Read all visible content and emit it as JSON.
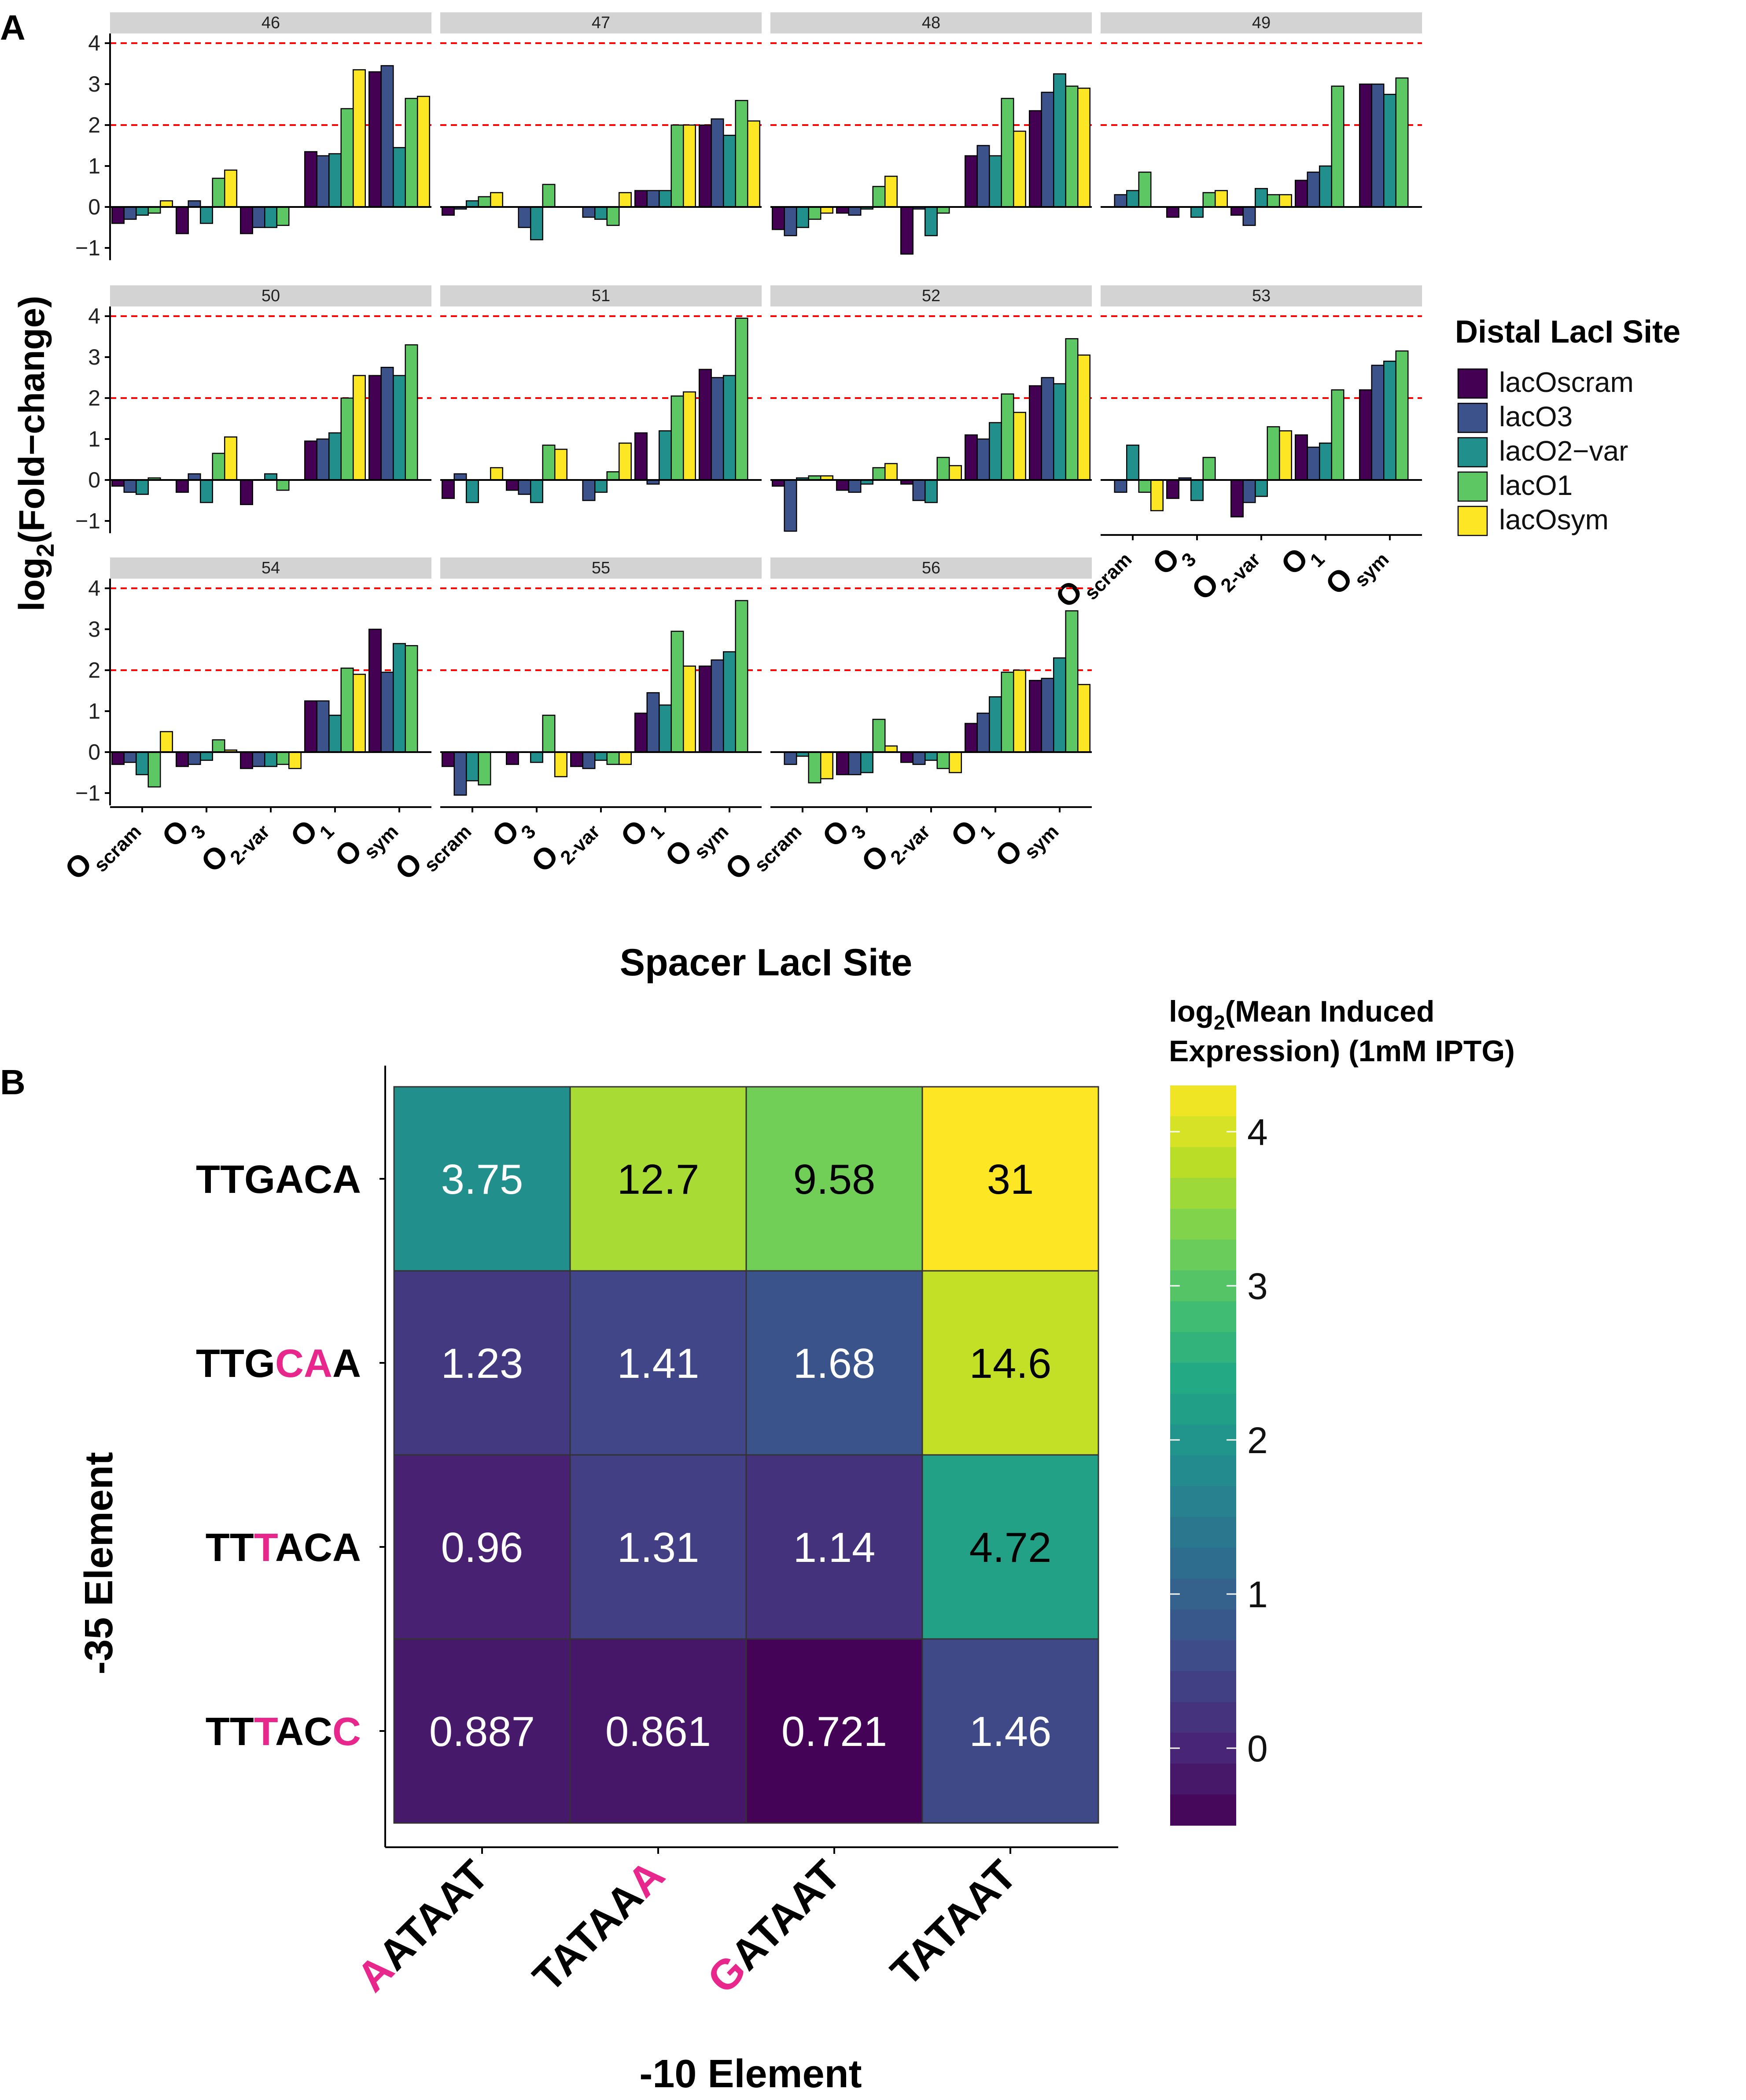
{
  "panel_a": {
    "label": "A",
    "ylabel_main": "log",
    "ylabel_sub": "2",
    "ylabel_rest": "(Fold−change)",
    "xlabel": "Spacer LacI Site",
    "yticks": [
      "−1",
      "0",
      "1",
      "2",
      "3",
      "4"
    ],
    "ref_lines": [
      2,
      4
    ],
    "x_tick_big": "O",
    "x_tick_subs": [
      "scram",
      "3",
      "2-var",
      "1",
      "sym"
    ],
    "legend_title": "Distal LacI Site",
    "legend_items": [
      "lacOscram",
      "lacO3",
      "lacO2−var",
      "lacO1",
      "lacOsym"
    ],
    "colors": [
      "#440154",
      "#3B528B",
      "#21908C",
      "#5DC863",
      "#FDE725"
    ]
  },
  "panel_b": {
    "label": "B",
    "xlabel": "-10 Element",
    "ylabel": "-35 Element",
    "colorbar_title_1a": "log",
    "colorbar_title_1b": "2",
    "colorbar_title_1c": "(Mean Induced",
    "colorbar_title_2": "Expression) (1mM IPTG)",
    "colorbar_ticks": [
      "0",
      "1",
      "2",
      "3",
      "4"
    ],
    "row_labels": [
      [
        {
          "t": "TTGACA",
          "m": false
        }
      ],
      [
        {
          "t": "TTG",
          "m": false
        },
        {
          "t": "CA",
          "m": true
        },
        {
          "t": "A",
          "m": false
        }
      ],
      [
        {
          "t": "TT",
          "m": false
        },
        {
          "t": "T",
          "m": true
        },
        {
          "t": "ACA",
          "m": false
        }
      ],
      [
        {
          "t": "TT",
          "m": false
        },
        {
          "t": "T",
          "m": true
        },
        {
          "t": "AC",
          "m": false
        },
        {
          "t": "C",
          "m": true
        }
      ]
    ],
    "col_labels": [
      [
        {
          "t": "A",
          "m": true
        },
        {
          "t": "ATAAT",
          "m": false
        }
      ],
      [
        {
          "t": "TATAA",
          "m": false
        },
        {
          "t": "A",
          "m": true
        }
      ],
      [
        {
          "t": "G",
          "m": true
        },
        {
          "t": "ATAAT",
          "m": false
        }
      ],
      [
        {
          "t": "TATAAT",
          "m": false
        }
      ]
    ],
    "mutation_color": "#E8278C"
  },
  "chart_data": [
    {
      "type": "bar",
      "facet_variable": "spacer length",
      "x_axis": "Spacer LacI Site",
      "fill": "Distal LacI Site",
      "categories": [
        "Oscram",
        "O3",
        "O2-var",
        "O1",
        "Osym"
      ],
      "series_order": [
        "lacOscram",
        "lacO3",
        "lacO2−var",
        "lacO1",
        "lacOsym"
      ],
      "ylim": [
        -1.3,
        4.1
      ],
      "facets": [
        {
          "label": "46",
          "values": [
            [
              -0.4,
              -0.3,
              -0.2,
              -0.15,
              0.15
            ],
            [
              -0.65,
              0.15,
              -0.4,
              0.7,
              0.9
            ],
            [
              -0.65,
              -0.5,
              -0.5,
              -0.45,
              0
            ],
            [
              1.35,
              1.25,
              1.3,
              2.4,
              3.35
            ],
            [
              3.3,
              3.45,
              1.45,
              2.65,
              2.7
            ]
          ]
        },
        {
          "label": "47",
          "values": [
            [
              -0.2,
              -0.05,
              0.15,
              0.25,
              0.35
            ],
            [
              0,
              -0.5,
              -0.8,
              0.55,
              0
            ],
            [
              0,
              -0.25,
              -0.3,
              -0.45,
              0.35
            ],
            [
              0.4,
              0.4,
              0.4,
              2,
              2
            ],
            [
              2,
              2.15,
              1.75,
              2.6,
              2.1
            ]
          ]
        },
        {
          "label": "48",
          "values": [
            [
              -0.55,
              -0.7,
              -0.5,
              -0.3,
              -0.15
            ],
            [
              -0.15,
              -0.2,
              -0.05,
              0.5,
              0.75
            ],
            [
              -1.15,
              -0.05,
              -0.7,
              -0.15,
              0
            ],
            [
              1.25,
              1.5,
              1.25,
              2.65,
              1.85
            ],
            [
              2.35,
              2.8,
              3.25,
              2.95,
              2.9
            ]
          ]
        },
        {
          "label": "49",
          "values": [
            [
              0,
              0.3,
              0.4,
              0.85,
              0
            ],
            [
              -0.25,
              0,
              -0.25,
              0.35,
              0.4
            ],
            [
              -0.2,
              -0.45,
              0.45,
              0.3,
              0.3
            ],
            [
              0.65,
              0.85,
              1,
              2.95,
              0
            ],
            [
              3,
              3,
              2.75,
              3.15,
              0
            ]
          ]
        },
        {
          "label": "50",
          "values": [
            [
              -0.15,
              -0.3,
              -0.35,
              0.05,
              0
            ],
            [
              -0.3,
              0.15,
              -0.55,
              0.65,
              1.05
            ],
            [
              -0.6,
              0,
              0.15,
              -0.25,
              0
            ],
            [
              0.95,
              1,
              1.15,
              2,
              2.55
            ],
            [
              2.55,
              2.75,
              2.55,
              3.3,
              0
            ]
          ]
        },
        {
          "label": "51",
          "values": [
            [
              -0.45,
              0.15,
              -0.55,
              0,
              0.3
            ],
            [
              -0.25,
              -0.35,
              -0.55,
              0.85,
              0.75
            ],
            [
              0,
              -0.5,
              -0.3,
              0.2,
              0.9
            ],
            [
              1.15,
              -0.1,
              1.2,
              2.05,
              2.15
            ],
            [
              2.7,
              2.5,
              2.55,
              3.95,
              0
            ]
          ]
        },
        {
          "label": "52",
          "values": [
            [
              -0.15,
              -1.25,
              0.05,
              0.1,
              0.1
            ],
            [
              -0.25,
              -0.3,
              -0.1,
              0.3,
              0.4
            ],
            [
              -0.1,
              -0.5,
              -0.55,
              0.55,
              0.35
            ],
            [
              1.1,
              1,
              1.4,
              2.1,
              1.65
            ],
            [
              2.3,
              2.5,
              2.35,
              3.45,
              3.05
            ]
          ]
        },
        {
          "label": "53",
          "values": [
            [
              0,
              -0.3,
              0.85,
              -0.3,
              -0.75
            ],
            [
              -0.45,
              0.05,
              -0.5,
              0.55,
              0
            ],
            [
              -0.9,
              -0.55,
              -0.4,
              1.3,
              1.2
            ],
            [
              1.1,
              0.8,
              0.9,
              2.2,
              0
            ],
            [
              2.2,
              2.8,
              2.9,
              3.15,
              0
            ]
          ]
        },
        {
          "label": "54",
          "values": [
            [
              -0.3,
              -0.25,
              -0.55,
              -0.85,
              0.5
            ],
            [
              -0.35,
              -0.3,
              -0.2,
              0.3,
              0.05
            ],
            [
              -0.4,
              -0.35,
              -0.35,
              -0.3,
              -0.4
            ],
            [
              1.25,
              1.25,
              0.9,
              2.05,
              1.9
            ],
            [
              3,
              1.95,
              2.65,
              2.6,
              0
            ]
          ]
        },
        {
          "label": "55",
          "values": [
            [
              -0.35,
              -1.05,
              -0.7,
              -0.8,
              0
            ],
            [
              -0.3,
              0,
              -0.25,
              0.9,
              -0.6
            ],
            [
              -0.35,
              -0.4,
              -0.2,
              -0.3,
              -0.3
            ],
            [
              0.95,
              1.45,
              1.15,
              2.95,
              2.1
            ],
            [
              2.1,
              2.25,
              2.45,
              3.7,
              0
            ]
          ]
        },
        {
          "label": "56",
          "values": [
            [
              0,
              -0.3,
              -0.1,
              -0.75,
              -0.65
            ],
            [
              -0.55,
              -0.55,
              -0.5,
              0.8,
              0.15
            ],
            [
              -0.25,
              -0.3,
              -0.2,
              -0.4,
              -0.5
            ],
            [
              0.7,
              0.95,
              1.35,
              1.95,
              2
            ],
            [
              1.75,
              1.8,
              2.3,
              3.45,
              1.65
            ]
          ]
        }
      ]
    },
    {
      "type": "heatmap",
      "x_axis": "-10 Element",
      "y_axis": "-35 Element",
      "x": [
        "AATAAT",
        "TATAAA",
        "GATAAT",
        "TATAAT"
      ],
      "y": [
        "TTGACA",
        "TTGCAA",
        "TTTACA",
        "TTTACC"
      ],
      "values": [
        [
          3.75,
          12.7,
          9.58,
          31
        ],
        [
          1.23,
          1.41,
          1.68,
          14.6
        ],
        [
          0.96,
          1.31,
          1.14,
          4.72
        ],
        [
          0.887,
          0.861,
          0.721,
          1.46
        ]
      ],
      "labels": [
        [
          "3.75",
          "12.7",
          "9.58",
          "31"
        ],
        [
          "1.23",
          "1.41",
          "1.68",
          "14.6"
        ],
        [
          "0.96",
          "1.31",
          "1.14",
          "4.72"
        ],
        [
          "0.887",
          "0.861",
          "0.721",
          "1.46"
        ]
      ],
      "color_scale": "viridis",
      "color_transform": "log2",
      "colorbar_range": [
        -0.5,
        4.3
      ]
    }
  ]
}
